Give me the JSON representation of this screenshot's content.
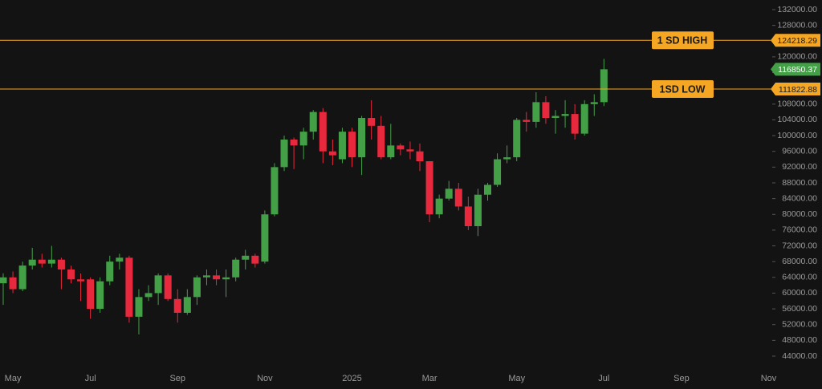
{
  "chart_data": {
    "type": "candlestick",
    "categories": [
      null,
      "May",
      null,
      null,
      null,
      null,
      null,
      null,
      null,
      "Jul",
      null,
      null,
      null,
      null,
      null,
      null,
      null,
      null,
      "Sep",
      null,
      null,
      null,
      null,
      null,
      null,
      null,
      null,
      "Nov",
      null,
      null,
      null,
      null,
      null,
      null,
      null,
      null,
      "2025",
      null,
      null,
      null,
      null,
      null,
      null,
      null,
      "Mar",
      null,
      null,
      null,
      null,
      null,
      null,
      null,
      null,
      "May",
      null,
      null,
      null,
      null,
      null,
      null,
      null,
      null,
      "Jul",
      null,
      null,
      null,
      null,
      null,
      null,
      null,
      "Sep",
      null,
      null,
      null,
      null,
      null,
      null,
      null,
      null,
      "Nov"
    ],
    "open": [
      62500,
      64000,
      61000,
      67000,
      68500,
      67500,
      68500,
      66000,
      63500,
      63500,
      56000,
      63000,
      68000,
      69000,
      54000,
      59000,
      60000,
      64500,
      58500,
      55000,
      59000,
      64000,
      64500,
      63500,
      64000,
      68500,
      69500,
      68000,
      80000,
      92000,
      99000,
      97500,
      101000,
      106000,
      96000,
      94000,
      101000,
      94500,
      104500,
      102500,
      94500,
      97500,
      96500,
      96000,
      93500,
      80000,
      84000,
      86500,
      82000,
      77000,
      85000,
      87500,
      94000,
      94500,
      104000,
      103500,
      108500,
      104500,
      105000,
      105500,
      100500,
      108000,
      108500,
      null,
      null,
      null,
      null,
      null,
      null,
      null,
      null,
      null,
      null,
      null,
      null,
      null,
      null,
      null,
      null,
      null
    ],
    "high": [
      65000,
      65500,
      68000,
      71500,
      70000,
      72000,
      69000,
      67000,
      65000,
      64000,
      64000,
      69500,
      70000,
      69500,
      61000,
      62000,
      65000,
      65000,
      61000,
      61000,
      64500,
      66000,
      66000,
      66000,
      69000,
      71000,
      70000,
      81000,
      93000,
      100000,
      99500,
      102000,
      106500,
      107000,
      99000,
      102000,
      102000,
      105000,
      109000,
      105000,
      103000,
      98000,
      98500,
      98000,
      93500,
      85000,
      88500,
      88000,
      84500,
      86500,
      88000,
      95500,
      97500,
      104500,
      106000,
      111000,
      110000,
      106500,
      109000,
      108000,
      109000,
      110500,
      119500,
      null,
      null,
      null,
      null,
      null,
      null,
      null,
      null,
      null,
      null,
      null,
      null,
      null,
      null,
      null,
      null,
      null
    ],
    "low": [
      57000,
      60000,
      60500,
      66000,
      66500,
      66500,
      61000,
      62500,
      58000,
      53500,
      55000,
      62000,
      66000,
      52500,
      49500,
      58000,
      57000,
      58000,
      52500,
      54500,
      57000,
      62000,
      62000,
      59000,
      63000,
      66000,
      66500,
      67500,
      79500,
      91000,
      91500,
      94000,
      99000,
      93000,
      92500,
      93000,
      92000,
      90000,
      99000,
      94000,
      94000,
      95000,
      94000,
      91000,
      78000,
      79000,
      83500,
      81000,
      76000,
      74500,
      83500,
      87000,
      93000,
      93500,
      101000,
      102000,
      103000,
      100500,
      102000,
      99000,
      100000,
      105000,
      107500,
      null,
      null,
      null,
      null,
      null,
      null,
      null,
      null,
      null,
      null,
      null,
      null,
      null,
      null,
      null,
      null,
      null
    ],
    "close": [
      64000,
      61000,
      67000,
      68500,
      67500,
      68500,
      66000,
      63500,
      63000,
      56000,
      63000,
      68000,
      69000,
      54000,
      59000,
      60000,
      64500,
      58500,
      55000,
      59000,
      64000,
      64500,
      63500,
      64000,
      68500,
      69500,
      67500,
      80000,
      92000,
      99000,
      97500,
      101000,
      106000,
      96000,
      95000,
      101000,
      94500,
      104500,
      102500,
      94500,
      97500,
      96500,
      96000,
      93500,
      80000,
      84000,
      86500,
      82000,
      77000,
      85000,
      87500,
      94000,
      94500,
      104000,
      103500,
      108500,
      104500,
      105000,
      105500,
      100500,
      108000,
      108500,
      116850.37,
      null,
      null,
      null,
      null,
      null,
      null,
      null,
      null,
      null,
      null,
      null,
      null,
      null,
      null,
      null,
      null,
      null
    ],
    "up_color": "#43a047",
    "down_color": "#e8283c",
    "ylim": [
      40740,
      134445
    ],
    "yticks": [
      {
        "value": 44000,
        "label": "44000.00"
      },
      {
        "value": 48000,
        "label": "48000.00"
      },
      {
        "value": 52000,
        "label": "52000.00"
      },
      {
        "value": 56000,
        "label": "56000.00"
      },
      {
        "value": 60000,
        "label": "60000.00"
      },
      {
        "value": 64000,
        "label": "64000.00"
      },
      {
        "value": 68000,
        "label": "68000.00"
      },
      {
        "value": 72000,
        "label": "72000.00"
      },
      {
        "value": 76000,
        "label": "76000.00"
      },
      {
        "value": 80000,
        "label": "80000.00"
      },
      {
        "value": 84000,
        "label": "84000.00"
      },
      {
        "value": 88000,
        "label": "88000.00"
      },
      {
        "value": 92000,
        "label": "92000.00"
      },
      {
        "value": 96000,
        "label": "96000.00"
      },
      {
        "value": 100000,
        "label": "100000.00"
      },
      {
        "value": 104000,
        "label": "104000.00"
      },
      {
        "value": 108000,
        "label": "108000.00"
      },
      {
        "value": 112000,
        "label": "112000.00"
      },
      {
        "value": 116000,
        "label": "116000.00"
      },
      {
        "value": 120000,
        "label": "120000.00"
      },
      {
        "value": 124000,
        "label": "124000.00"
      },
      {
        "value": 128000,
        "label": "128000.00"
      },
      {
        "value": 132000,
        "label": "132000.00"
      }
    ],
    "levels": [
      {
        "label": "1 SD HIGH",
        "value": 124218.29,
        "color": "#f5a623"
      },
      {
        "label": "1SD LOW",
        "value": 111822.88,
        "color": "#f5a623"
      }
    ]
  }
}
